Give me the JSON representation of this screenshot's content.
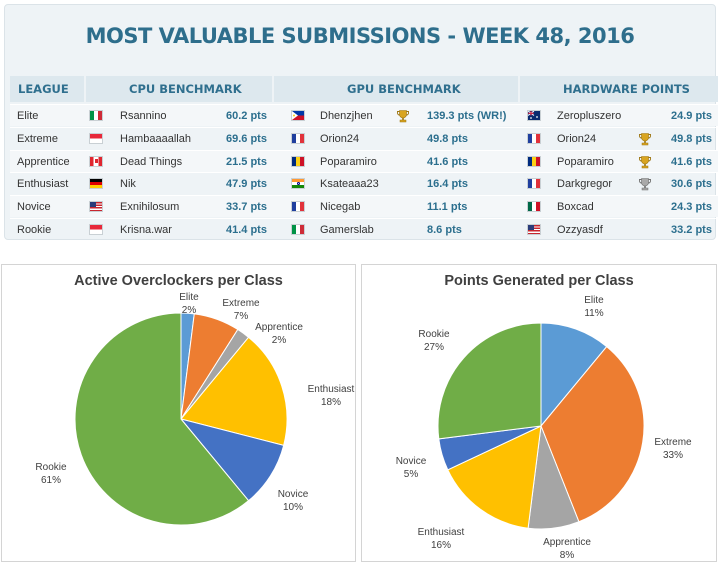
{
  "title": "MOST VALUABLE SUBMISSIONS - WEEK 48, 2016",
  "headers": {
    "league": "LEAGUE",
    "cpu": "CPU BENCHMARK",
    "gpu": "GPU BENCHMARK",
    "hw": "HARDWARE POINTS"
  },
  "rows": [
    {
      "league": "Elite",
      "cpu_flag": "italy",
      "cpu_user": "Rsannino",
      "cpu_pts": "60.2 pts",
      "gpu_flag": "philippines",
      "gpu_trophy": "gold",
      "gpu_user": "Dhenzjhen",
      "gpu_pts": "139.3 pts (WR!)",
      "hw_flag": "australia",
      "hw_trophy": "",
      "hw_user": "Zeropluszero",
      "hw_pts": "24.9 pts"
    },
    {
      "league": "Extreme",
      "cpu_flag": "indonesia",
      "cpu_user": "Hambaaaallah",
      "cpu_pts": "69.6 pts",
      "gpu_flag": "france",
      "gpu_trophy": "",
      "gpu_user": "Orion24",
      "gpu_pts": "49.8 pts",
      "hw_flag": "france",
      "hw_trophy": "gold",
      "hw_user": "Orion24",
      "hw_pts": "49.8 pts"
    },
    {
      "league": "Apprentice",
      "cpu_flag": "canada",
      "cpu_user": "Dead Things",
      "cpu_pts": "21.5 pts",
      "gpu_flag": "romania",
      "gpu_trophy": "",
      "gpu_user": "Poparamiro",
      "gpu_pts": "41.6 pts",
      "hw_flag": "romania",
      "hw_trophy": "gold",
      "hw_user": "Poparamiro",
      "hw_pts": "41.6 pts"
    },
    {
      "league": "Enthusiast",
      "cpu_flag": "germany",
      "cpu_user": "Nik",
      "cpu_pts": "47.9 pts",
      "gpu_flag": "india",
      "gpu_trophy": "",
      "gpu_user": "Ksateaaa23",
      "gpu_pts": "16.4 pts",
      "hw_flag": "france",
      "hw_trophy": "silver",
      "hw_user": "Darkgregor",
      "hw_pts": "30.6 pts"
    },
    {
      "league": "Novice",
      "cpu_flag": "usa",
      "cpu_user": "Exnihilosum",
      "cpu_pts": "33.7 pts",
      "gpu_flag": "france",
      "gpu_trophy": "",
      "gpu_user": "Nicegab",
      "gpu_pts": "11.1 pts",
      "hw_flag": "mexico",
      "hw_trophy": "",
      "hw_user": "Boxcad",
      "hw_pts": "24.3 pts"
    },
    {
      "league": "Rookie",
      "cpu_flag": "indonesia",
      "cpu_user": "Krisna.war",
      "cpu_pts": "41.4 pts",
      "gpu_flag": "italy",
      "gpu_trophy": "",
      "gpu_user": "Gamerslab",
      "gpu_pts": "8.6 pts",
      "hw_flag": "usa",
      "hw_trophy": "",
      "hw_user": "Ozzyasdf",
      "hw_pts": "33.2 pts"
    }
  ],
  "colors": {
    "Elite": "#5b9bd5",
    "Extreme": "#ed7d31",
    "Apprentice": "#a5a5a5",
    "Enthusiast": "#ffc000",
    "Novice": "#4472c4",
    "Rookie": "#70ad47"
  },
  "chart_data": [
    {
      "type": "pie",
      "title": "Active Overclockers per Class",
      "categories": [
        "Elite",
        "Extreme",
        "Apprentice",
        "Enthusiast",
        "Novice",
        "Rookie"
      ],
      "values": [
        2,
        7,
        2,
        18,
        10,
        61
      ],
      "labels": [
        "2%",
        "7%",
        "2%",
        "18%",
        "10%",
        "61%"
      ]
    },
    {
      "type": "pie",
      "title": "Points Generated per Class",
      "categories": [
        "Elite",
        "Extreme",
        "Apprentice",
        "Enthusiast",
        "Novice",
        "Rookie"
      ],
      "values": [
        11,
        33,
        8,
        16,
        5,
        27
      ],
      "labels": [
        "11%",
        "33%",
        "8%",
        "16%",
        "5%",
        "27%"
      ]
    }
  ]
}
